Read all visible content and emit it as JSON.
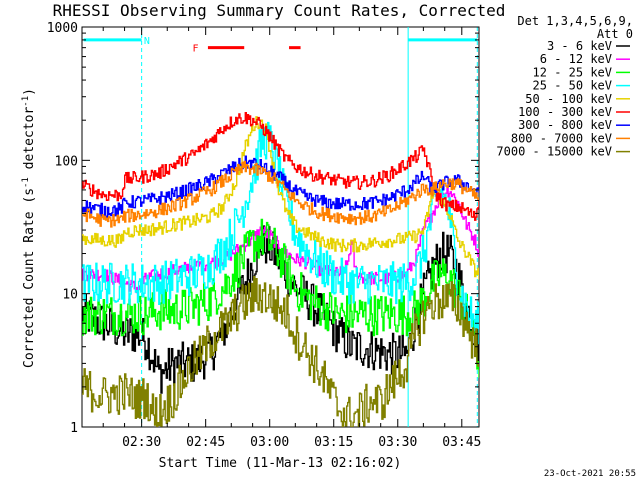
{
  "chart_data": {
    "type": "line",
    "title": "RHESSI Observing Summary Count Rates, Corrected",
    "ylabel_main": "Corrected Count Rate (s",
    "ylabel_sup1": "-1",
    "ylabel_mid": " detector",
    "ylabel_sup2": "-1",
    "ylabel_end": ")",
    "xlabel": "Start Time (11-Mar-13 02:16:02)",
    "y_scale": "log",
    "ylim": [
      1,
      1000
    ],
    "xlim_minutes": [
      0,
      93
    ],
    "x_ticks": [
      {
        "label": "02:30",
        "minutes": 13.97
      },
      {
        "label": "02:45",
        "minutes": 28.97
      },
      {
        "label": "03:00",
        "minutes": 43.97
      },
      {
        "label": "03:15",
        "minutes": 58.97
      },
      {
        "label": "03:30",
        "minutes": 73.97
      },
      {
        "label": "03:45",
        "minutes": 88.97
      }
    ],
    "y_ticks": [
      {
        "label": "1",
        "value": 1
      },
      {
        "label": "10",
        "value": 10
      },
      {
        "label": "100",
        "value": 100
      },
      {
        "label": "1000",
        "value": 1000
      }
    ],
    "legend_header": [
      "Det 1,3,4,5,6,9,",
      "Att 0"
    ],
    "series": [
      {
        "name": "3 - 6 keV",
        "color": "#000000",
        "x": [
          0,
          5,
          10,
          13,
          15,
          18,
          22,
          26,
          30,
          34,
          37,
          40,
          42,
          44,
          46,
          48,
          50,
          53,
          56,
          60,
          63,
          65,
          68,
          72,
          76,
          78,
          80,
          82,
          84,
          86,
          88,
          90,
          92,
          93
        ],
        "y": [
          7,
          6,
          5,
          5,
          4.5,
          2.5,
          3,
          3,
          3.5,
          6,
          10,
          17,
          24,
          22,
          18,
          14,
          11,
          9,
          7,
          5,
          4,
          4,
          3.8,
          3.5,
          3.5,
          6,
          10,
          15,
          20,
          20,
          14,
          8,
          5,
          4
        ]
      },
      {
        "name": "6 - 12 keV",
        "color": "#ff00ff",
        "x": [
          0,
          5,
          10,
          13,
          15,
          18,
          22,
          26,
          30,
          34,
          37,
          40,
          42,
          44,
          46,
          48,
          50,
          53,
          56,
          60,
          62,
          63,
          64,
          66,
          68,
          72,
          76,
          78,
          80,
          82,
          84,
          86,
          88,
          90,
          92,
          93
        ],
        "y": [
          14,
          14,
          12,
          11,
          13,
          14,
          15,
          16,
          17,
          19,
          22,
          26,
          30,
          27,
          23,
          20,
          18,
          17,
          15,
          14,
          16,
          24,
          15,
          13,
          13,
          13,
          14,
          18,
          30,
          40,
          55,
          60,
          48,
          33,
          25,
          20
        ]
      },
      {
        "name": "12 - 25 keV",
        "color": "#00ff00",
        "x": [
          0,
          5,
          10,
          13,
          15,
          18,
          22,
          26,
          30,
          34,
          37,
          40,
          42,
          44,
          46,
          48,
          50,
          53,
          56,
          60,
          63,
          65,
          68,
          72,
          76,
          78,
          80,
          82,
          84,
          86,
          88,
          90,
          92,
          93
        ],
        "y": [
          7,
          7,
          7,
          7,
          7,
          7.5,
          7.5,
          8,
          9,
          12,
          17,
          24,
          26,
          24,
          20,
          15,
          11,
          9,
          8,
          7,
          7,
          7,
          7,
          7,
          7,
          7.5,
          9,
          12,
          14,
          13,
          10,
          7,
          4,
          3
        ]
      },
      {
        "name": "25 - 50 keV",
        "color": "#00ffff",
        "x": [
          0,
          5,
          10,
          13,
          15,
          18,
          22,
          26,
          30,
          34,
          37,
          39,
          41,
          42,
          43,
          44,
          45,
          46,
          48,
          50,
          53,
          56,
          60,
          63,
          65,
          68,
          72,
          76,
          78,
          80,
          82,
          84,
          86,
          88,
          90,
          92,
          93
        ],
        "y": [
          12,
          12,
          12,
          12,
          12,
          12,
          13,
          14,
          16,
          24,
          38,
          60,
          100,
          140,
          145,
          135,
          110,
          80,
          45,
          28,
          20,
          16,
          13,
          12,
          12,
          12,
          12,
          12,
          14,
          20,
          40,
          60,
          40,
          12,
          8,
          6,
          6
        ]
      },
      {
        "name": "50 - 100 keV",
        "color": "#e6d200",
        "x": [
          0,
          5,
          9,
          10,
          13,
          15,
          18,
          22,
          26,
          30,
          33,
          36,
          38,
          40,
          41,
          42,
          43,
          44,
          45,
          46,
          48,
          50,
          53,
          56,
          60,
          63,
          65,
          68,
          72,
          76,
          78,
          80,
          82,
          83,
          84,
          85,
          86,
          88,
          90,
          92,
          93
        ],
        "y": [
          26,
          25,
          25,
          29,
          30,
          30,
          31,
          33,
          35,
          38,
          45,
          70,
          120,
          180,
          195,
          190,
          170,
          120,
          80,
          60,
          40,
          32,
          28,
          25,
          23,
          23,
          23,
          24,
          25,
          26,
          27,
          30,
          55,
          60,
          50,
          45,
          40,
          25,
          20,
          15,
          14
        ]
      },
      {
        "name": "100 - 300 keV",
        "color": "#ff0000",
        "x": [
          0,
          5,
          9,
          10,
          13,
          15,
          18,
          22,
          26,
          30,
          33,
          36,
          38,
          40,
          42,
          44,
          46,
          48,
          50,
          53,
          56,
          60,
          63,
          65,
          68,
          72,
          76,
          78,
          80,
          82,
          83,
          84,
          86,
          88,
          90,
          92,
          93
        ],
        "y": [
          65,
          55,
          55,
          72,
          74,
          76,
          80,
          95,
          110,
          140,
          175,
          205,
          210,
          200,
          180,
          150,
          120,
          100,
          90,
          80,
          75,
          70,
          68,
          68,
          70,
          78,
          95,
          105,
          120,
          70,
          55,
          50,
          45,
          45,
          42,
          37,
          50
        ]
      },
      {
        "name": "300 - 800 keV",
        "color": "#0000ff",
        "x": [
          0,
          5,
          9,
          10,
          13,
          15,
          18,
          22,
          26,
          30,
          33,
          36,
          38,
          40,
          42,
          44,
          46,
          48,
          50,
          53,
          56,
          60,
          63,
          65,
          68,
          72,
          76,
          78,
          80,
          82,
          84,
          86,
          88,
          90,
          92,
          93
        ],
        "y": [
          46,
          42,
          43,
          48,
          49,
          50,
          52,
          56,
          62,
          70,
          80,
          90,
          96,
          95,
          90,
          82,
          75,
          66,
          58,
          52,
          49,
          47,
          47,
          47,
          48,
          52,
          60,
          68,
          76,
          60,
          65,
          70,
          70,
          65,
          58,
          55
        ]
      },
      {
        "name": "800 - 7000 keV",
        "color": "#ff8000",
        "x": [
          0,
          5,
          9,
          10,
          13,
          15,
          18,
          22,
          26,
          30,
          33,
          36,
          38,
          40,
          42,
          44,
          46,
          48,
          50,
          53,
          56,
          60,
          63,
          65,
          68,
          72,
          76,
          78,
          80,
          82,
          84,
          86,
          88,
          90,
          92,
          93
        ],
        "y": [
          40,
          35,
          36,
          38,
          39,
          40,
          42,
          46,
          52,
          60,
          70,
          82,
          88,
          86,
          82,
          76,
          68,
          58,
          50,
          44,
          40,
          38,
          37,
          37,
          38,
          42,
          50,
          55,
          62,
          60,
          66,
          68,
          66,
          60,
          54,
          50
        ]
      },
      {
        "name": "7000 - 15000 keV",
        "color": "#808000",
        "x": [
          0,
          5,
          10,
          13,
          15,
          17,
          20,
          22,
          24,
          26,
          28,
          30,
          34,
          37,
          40,
          42,
          44,
          46,
          48,
          50,
          53,
          56,
          58,
          60,
          62,
          64,
          66,
          68,
          70,
          72,
          74,
          76,
          78,
          80,
          82,
          84,
          86,
          88,
          90,
          92,
          93
        ],
        "y": [
          2,
          1.7,
          1.8,
          1.6,
          1.7,
          1.2,
          1.5,
          1.8,
          2.4,
          3,
          3.5,
          4.5,
          6,
          8,
          9.5,
          10,
          9,
          8,
          7,
          5,
          3.5,
          2.5,
          1.8,
          1.4,
          1.2,
          1.2,
          1.4,
          1.6,
          1.5,
          2,
          2.4,
          3,
          5,
          7,
          8.5,
          9,
          9,
          8,
          6,
          4,
          4
        ]
      }
    ],
    "attenuator_bars": [
      {
        "x0": 0.4,
        "x1": 13.97,
        "value": 800,
        "color": "#00ffff"
      },
      {
        "x0": 76.4,
        "x1": 92.6,
        "value": 800,
        "color": "#00ffff"
      }
    ],
    "vertical_dashed_lines_minutes": [
      13.97,
      92.6
    ],
    "vertical_solid_lines_minutes": [
      76.4
    ],
    "flag_annotations": [
      {
        "label": "N",
        "x": 15.2,
        "value": 800,
        "color": "#00ffff"
      },
      {
        "label": "F",
        "x": 26.6,
        "value": 700,
        "color": "#ff0000"
      }
    ],
    "flare_bars": [
      {
        "x0": 29.5,
        "x1": 38.0,
        "value": 700,
        "color": "#ff0000"
      },
      {
        "x0": 48.5,
        "x1": 51.2,
        "value": 700,
        "color": "#ff0000"
      }
    ],
    "timestamp": "23-Oct-2021 20:55"
  }
}
